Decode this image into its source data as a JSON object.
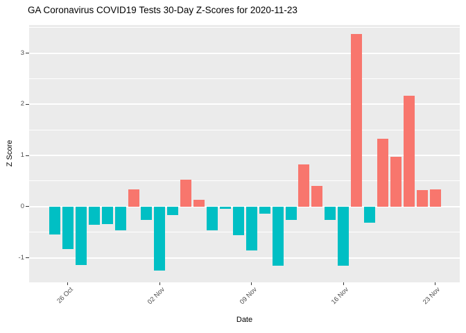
{
  "chart_data": {
    "type": "bar",
    "title": "GA Coronavirus COVID19 Tests 30-Day Z-Scores for 2020-11-23",
    "xlabel": "Date",
    "ylabel": "Z Score",
    "x": [
      "2020-10-25",
      "2020-10-26",
      "2020-10-27",
      "2020-10-28",
      "2020-10-29",
      "2020-10-30",
      "2020-10-31",
      "2020-11-01",
      "2020-11-02",
      "2020-11-03",
      "2020-11-04",
      "2020-11-05",
      "2020-11-06",
      "2020-11-07",
      "2020-11-08",
      "2020-11-09",
      "2020-11-10",
      "2020-11-11",
      "2020-11-12",
      "2020-11-13",
      "2020-11-14",
      "2020-11-15",
      "2020-11-16",
      "2020-11-17",
      "2020-11-18",
      "2020-11-19",
      "2020-11-20",
      "2020-11-21",
      "2020-11-22",
      "2020-11-23"
    ],
    "values": [
      -0.54,
      -0.83,
      -1.14,
      -0.35,
      -0.34,
      -0.47,
      0.34,
      -0.26,
      -1.25,
      -0.16,
      0.53,
      0.13,
      -0.46,
      -0.04,
      -0.56,
      -0.86,
      -0.14,
      -1.16,
      -0.26,
      0.83,
      0.4,
      -0.26,
      -1.16,
      3.37,
      -0.32,
      1.33,
      0.97,
      2.17,
      0.33,
      0.34
    ],
    "ylim": [
      -1.48,
      3.55
    ],
    "yticks_major": [
      {
        "label": "-1",
        "value": -1
      },
      {
        "label": "0",
        "value": 0
      },
      {
        "label": "1",
        "value": 1
      },
      {
        "label": "2",
        "value": 2
      },
      {
        "label": "3",
        "value": 3
      }
    ],
    "yticks_minor": [
      -0.5,
      0.5,
      1.5,
      2.5,
      3.5
    ],
    "xticks": [
      {
        "label": "26 Oct",
        "day_index": 1
      },
      {
        "label": "02 Nov",
        "day_index": 8
      },
      {
        "label": "09 Nov",
        "day_index": 15
      },
      {
        "label": "16 Nov",
        "day_index": 22
      },
      {
        "label": "23 Nov",
        "day_index": 29
      }
    ],
    "legend": "none",
    "grid": "on",
    "colors": {
      "positive_bar": "#F8766D",
      "negative_bar": "#00BFC4",
      "panel_background": "#EBEBEB",
      "gridline": "#FFFFFF",
      "axis_text": "#4D4D4D"
    }
  }
}
